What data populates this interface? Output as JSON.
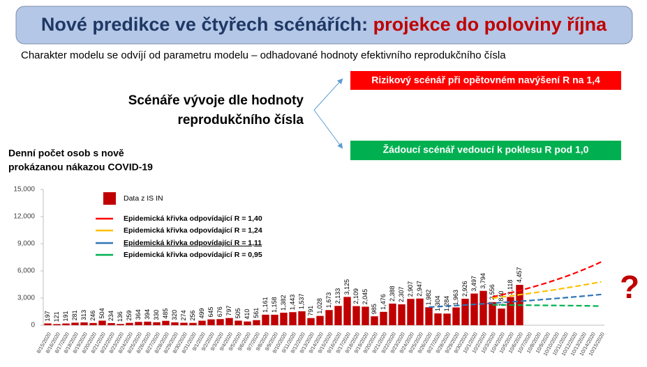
{
  "slide": {
    "title_part1": "Nové predikce ve čtyřech scénářích:",
    "title_part2": "projekce do poloviny října",
    "subtitle": "Charakter modelu se odvíjí od parametru modelu – odhadované hodnoty efektivního reprodukčního čísla",
    "scenario_label": [
      "Scénáře vývoje dle hodnoty",
      "reprodukčního čísla"
    ],
    "red_box": "Rizikový scénář při opětovném navýšení R na 1,4",
    "green_box": "Žádoucí scénář vedoucí k poklesu R pod 1,0",
    "question": "?"
  },
  "chart_data": {
    "type": "bar",
    "title": [
      "Denní počet osob s nově",
      "prokázanou nákazou COVID-19"
    ],
    "categories": [
      "8/15/2020",
      "8/16/2020",
      "8/17/2020",
      "8/18/2020",
      "8/19/2020",
      "8/20/2020",
      "8/21/2020",
      "8/22/2020",
      "8/23/2020",
      "8/24/2020",
      "8/25/2020",
      "8/26/2020",
      "8/27/2020",
      "8/28/2020",
      "8/29/2020",
      "8/30/2020",
      "8/31/2020",
      "9/1/2020",
      "9/2/2020",
      "9/3/2020",
      "9/4/2020",
      "9/5/2020",
      "9/6/2020",
      "9/7/2020",
      "9/8/2020",
      "9/9/2020",
      "9/10/2020",
      "9/11/2020",
      "9/12/2020",
      "9/13/2020",
      "9/14/2020",
      "9/15/2020",
      "9/16/2020",
      "9/17/2020",
      "9/18/2020",
      "9/19/2020",
      "9/20/2020",
      "9/21/2020",
      "9/22/2020",
      "9/23/2020",
      "9/24/2020",
      "9/25/2020",
      "9/26/2020",
      "9/27/2020",
      "9/28/2020",
      "9/29/2020",
      "9/30/2020",
      "10/1/2020",
      "10/2/2020",
      "10/3/2020",
      "10/4/2020",
      "10/5/2020",
      "10/6/2020",
      "10/7/2020",
      "10/8/2020",
      "10/9/2020",
      "10/10/2020",
      "10/11/2020",
      "10/12/2020",
      "10/13/2020",
      "10/14/2020",
      "10/15/2020"
    ],
    "series": [
      {
        "name": "Data z IS IN",
        "type": "bar",
        "color": "#c00000",
        "values": [
          197,
          121,
          191,
          281,
          313,
          246,
          504,
          234,
          136,
          259,
          364,
          394,
          330,
          485,
          320,
          274,
          256,
          499,
          645,
          676,
          797,
          505,
          410,
          561,
          1161,
          1158,
          1382,
          1443,
          1537,
          791,
          1028,
          1673,
          2133,
          3125,
          2109,
          2045,
          985,
          1476,
          2388,
          2307,
          2907,
          2947,
          1982,
          1304,
          1284,
          1963,
          2926,
          3497,
          3794,
          2556,
          1840,
          3118,
          4457,
          null,
          null,
          null,
          null,
          null,
          null,
          null,
          null,
          null
        ],
        "value_labels": [
          "197",
          "121",
          "191",
          "281",
          "313",
          "246",
          "504",
          "234",
          "136",
          "259",
          "364",
          "394",
          "330",
          "485",
          "320",
          "274",
          "256",
          "499",
          "645",
          "676",
          "797",
          "505",
          "410",
          "561",
          "1,161",
          "1,158",
          "1,382",
          "1,443",
          "1,537",
          "791",
          "1,028",
          "1,673",
          "2,133",
          "3,125",
          "2,109",
          "2,045",
          "985",
          "1,476",
          "2,388",
          "2,307",
          "2,907",
          "2,947",
          "1,982",
          "1,304",
          "1,284",
          "1,963",
          "2,926",
          "3,497",
          "3,794",
          "2,556",
          "1,840",
          "3,118",
          "4,457",
          null,
          null,
          null,
          null,
          null,
          null,
          null,
          null,
          null
        ]
      },
      {
        "name": "Epidemická křivka odpovídající R = 1,40",
        "type": "line",
        "color": "#ff0000",
        "values": [
          null,
          null,
          null,
          null,
          null,
          null,
          null,
          null,
          null,
          null,
          null,
          null,
          null,
          null,
          null,
          null,
          null,
          null,
          null,
          null,
          null,
          null,
          null,
          null,
          null,
          null,
          null,
          null,
          null,
          null,
          null,
          null,
          null,
          null,
          null,
          null,
          null,
          null,
          null,
          null,
          null,
          null,
          null,
          null,
          null,
          null,
          null,
          null,
          null,
          3130,
          3350,
          3580,
          3830,
          4100,
          4380,
          4680,
          5010,
          5350,
          5720,
          6120,
          6540,
          7000
        ]
      },
      {
        "name": "Epidemická křivka odpovídající R = 1,24",
        "type": "line",
        "color": "#ffc000",
        "values": [
          null,
          null,
          null,
          null,
          null,
          null,
          null,
          null,
          null,
          null,
          null,
          null,
          null,
          null,
          null,
          null,
          null,
          null,
          null,
          null,
          null,
          null,
          null,
          null,
          null,
          null,
          null,
          null,
          null,
          null,
          null,
          null,
          null,
          null,
          null,
          null,
          null,
          null,
          null,
          null,
          null,
          null,
          null,
          null,
          null,
          null,
          null,
          null,
          null,
          2990,
          3110,
          3240,
          3370,
          3500,
          3640,
          3790,
          3940,
          4100,
          4260,
          4430,
          4610,
          4800
        ]
      },
      {
        "name": "Epidemická křivka odpovídající R = 1,11",
        "type": "line",
        "color": "#2e75b6",
        "values": [
          null,
          null,
          null,
          null,
          null,
          null,
          null,
          null,
          null,
          null,
          null,
          null,
          null,
          null,
          null,
          null,
          null,
          null,
          null,
          null,
          null,
          null,
          null,
          null,
          null,
          null,
          null,
          null,
          null,
          null,
          null,
          null,
          null,
          null,
          null,
          null,
          null,
          null,
          null,
          null,
          null,
          null,
          2000,
          2057,
          2115,
          2174,
          2236,
          2299,
          2364,
          2431,
          2500,
          2571,
          2643,
          2718,
          2795,
          2874,
          2955,
          3039,
          3125,
          3213,
          3304,
          3398
        ]
      },
      {
        "name": "Epidemická křivka odpovídající R = 0,95",
        "type": "line",
        "color": "#00b050",
        "values": [
          null,
          null,
          null,
          null,
          null,
          null,
          null,
          null,
          null,
          null,
          null,
          null,
          null,
          null,
          null,
          null,
          null,
          null,
          null,
          null,
          null,
          null,
          null,
          null,
          null,
          null,
          null,
          null,
          null,
          null,
          null,
          null,
          null,
          null,
          null,
          null,
          null,
          null,
          null,
          null,
          null,
          null,
          null,
          null,
          null,
          null,
          null,
          null,
          null,
          2250,
          2240,
          2230,
          2220,
          2210,
          2200,
          2190,
          2180,
          2170,
          2160,
          2150,
          2130,
          2100
        ]
      }
    ],
    "ylim": [
      0,
      15000
    ],
    "yticks": [
      0,
      {
        "value": 3000,
        "label": "3,000"
      },
      {
        "value": 6000,
        "label": "6,000"
      },
      {
        "value": 9000,
        "label": "9,000"
      },
      {
        "value": 12000,
        "label": "12,000"
      },
      {
        "value": 15000,
        "label": "15,000"
      }
    ],
    "legend": "upper left",
    "grid": false
  }
}
